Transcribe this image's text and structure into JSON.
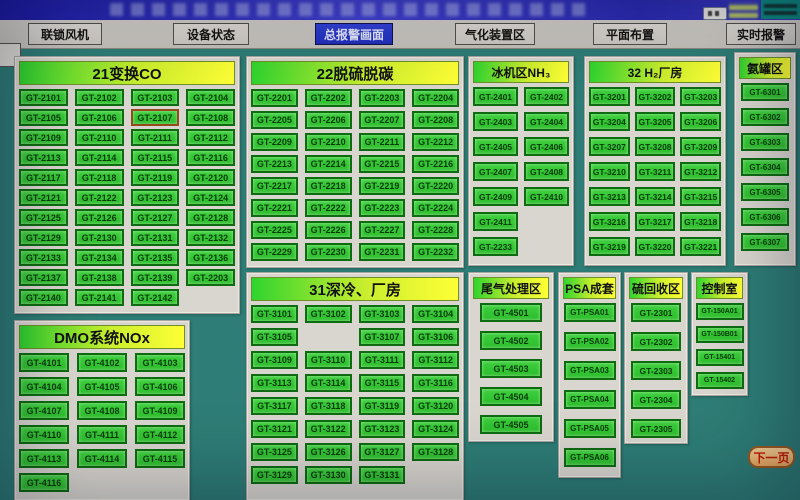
{
  "alarm_tag": "GT-2107",
  "colors": {
    "background": "#2E7D76",
    "panel_bg": "#D9D6CF",
    "button_green": "#2FC52F",
    "button_border_green": "#0E6B12",
    "alarm_border": "#94491C",
    "header_gradient_start": "#2FD42F",
    "header_gradient_end": "#FFFF35",
    "active_nav_bg": "#2230BD",
    "title_bar_blue": "#2C2CB6",
    "next_page_bg": "#E8A85C",
    "next_page_text": "#C41A00"
  },
  "nav": {
    "items": [
      {
        "label": "联锁风机",
        "active": false
      },
      {
        "label": "设备状态",
        "active": false
      },
      {
        "label": "总报警画面",
        "active": true
      },
      {
        "label": "气化装置区",
        "active": false
      },
      {
        "label": "平面布置",
        "active": false
      },
      {
        "label": "实时报警",
        "active": false
      }
    ]
  },
  "sections": {
    "s21": {
      "title": "21变换CO",
      "buttons": [
        "GT-2101",
        "GT-2102",
        "GT-2103",
        "GT-2104",
        "GT-2105",
        "GT-2106",
        "GT-2107",
        "GT-2108",
        "GT-2109",
        "GT-2110",
        "GT-2111",
        "GT-2112",
        "GT-2113",
        "GT-2114",
        "GT-2115",
        "GT-2116",
        "GT-2117",
        "GT-2118",
        "GT-2119",
        "GT-2120",
        "GT-2121",
        "GT-2122",
        "GT-2123",
        "GT-2124",
        "GT-2125",
        "GT-2126",
        "GT-2127",
        "GT-2128",
        "GT-2129",
        "GT-2130",
        "GT-2131",
        "GT-2132",
        "GT-2133",
        "GT-2134",
        "GT-2135",
        "GT-2136",
        "GT-2137",
        "GT-2138",
        "GT-2139",
        "GT-2203",
        "GT-2140",
        "GT-2141",
        "GT-2142",
        null
      ]
    },
    "dmo": {
      "title": "DMO系统NOx",
      "buttons": [
        "GT-4101",
        "GT-4102",
        "GT-4103",
        "GT-4104",
        "GT-4105",
        "GT-4106",
        "GT-4107",
        "GT-4108",
        "GT-4109",
        "GT-4110",
        "GT-4111",
        "GT-4112",
        "GT-4113",
        "GT-4114",
        "GT-4115",
        "GT-4116"
      ]
    },
    "s22": {
      "title": "22脱硫脱碳",
      "buttons": [
        "GT-2201",
        "GT-2202",
        "GT-2203",
        "GT-2204",
        "GT-2205",
        "GT-2206",
        "GT-2207",
        "GT-2208",
        "GT-2209",
        "GT-2210",
        "GT-2211",
        "GT-2212",
        "GT-2213",
        "GT-2214",
        "GT-2215",
        "GT-2216",
        "GT-2217",
        "GT-2218",
        "GT-2219",
        "GT-2220",
        "GT-2221",
        "GT-2222",
        "GT-2223",
        "GT-2224",
        "GT-2225",
        "GT-2226",
        "GT-2227",
        "GT-2228",
        "GT-2229",
        "GT-2230",
        "GT-2231",
        "GT-2232"
      ]
    },
    "s31": {
      "title": "31深冷、厂房",
      "buttons": [
        "GT-3101",
        "GT-3102",
        "GT-3103",
        "GT-3104",
        "GT-3105",
        null,
        "GT-3107",
        "GT-3106",
        "GT-3109",
        "GT-3110",
        "GT-3111",
        "GT-3112",
        "GT-3113",
        "GT-3114",
        "GT-3115",
        "GT-3116",
        "GT-3117",
        "GT-3118",
        "GT-3119",
        "GT-3120",
        "GT-3121",
        "GT-3122",
        "GT-3123",
        "GT-3124",
        "GT-3125",
        "GT-3126",
        "GT-3127",
        "GT-3128",
        "GT-3129",
        "GT-3130",
        "GT-3131",
        null
      ]
    },
    "nh3": {
      "title": "冰机区NH₃",
      "buttons": [
        "GT-2401",
        "GT-2402",
        "GT-2403",
        "GT-2404",
        "GT-2405",
        "GT-2406",
        "GT-2407",
        "GT-2408",
        "GT-2409",
        "GT-2410",
        "GT-2411",
        null,
        "GT-2233",
        null
      ]
    },
    "h2": {
      "title": "32 H₂厂房",
      "buttons": [
        "GT-3201",
        "GT-3202",
        "GT-3203",
        "GT-3204",
        "GT-3205",
        "GT-3206",
        "GT-3207",
        "GT-3208",
        "GT-3209",
        "GT-3210",
        "GT-3211",
        "GT-3212",
        "GT-3213",
        "GT-3214",
        "GT-3215",
        "GT-3216",
        "GT-3217",
        "GT-3218",
        "GT-3219",
        "GT-3220",
        "GT-3221"
      ]
    },
    "ammonia": {
      "title": "氨罐区",
      "buttons": [
        "GT-6301",
        "GT-6302",
        "GT-6303",
        "GT-6304",
        "GT-6305",
        "GT-6306",
        "GT-6307"
      ]
    },
    "tailgas": {
      "title": "尾气处理区",
      "buttons": [
        "GT-4501",
        "GT-4502",
        "GT-4503",
        "GT-4504",
        "GT-4505"
      ]
    },
    "psa": {
      "title": "PSA成套",
      "buttons": [
        "GT-PSA01",
        "GT-PSA02",
        "GT-PSA03",
        "GT-PSA04",
        "GT-PSA05",
        "GT-PSA06"
      ]
    },
    "sulfur": {
      "title": "硫回收区",
      "buttons": [
        "GT-2301",
        "GT-2302",
        "GT-2303",
        "GT-2304",
        "GT-2305"
      ]
    },
    "control": {
      "title": "控制室",
      "buttons": [
        "GT-150A01",
        "GT-150B01",
        "GT-15401",
        "GT-15402"
      ]
    }
  },
  "next_page_label": "下一页"
}
